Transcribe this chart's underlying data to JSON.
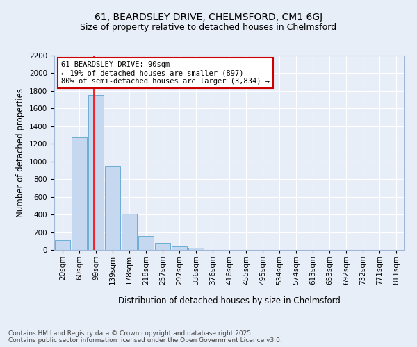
{
  "title_line1": "61, BEARDSLEY DRIVE, CHELMSFORD, CM1 6GJ",
  "title_line2": "Size of property relative to detached houses in Chelmsford",
  "xlabel": "Distribution of detached houses by size in Chelmsford",
  "ylabel": "Number of detached properties",
  "categories": [
    "20sqm",
    "60sqm",
    "99sqm",
    "139sqm",
    "178sqm",
    "218sqm",
    "257sqm",
    "297sqm",
    "336sqm",
    "376sqm",
    "416sqm",
    "455sqm",
    "495sqm",
    "534sqm",
    "574sqm",
    "613sqm",
    "653sqm",
    "692sqm",
    "732sqm",
    "771sqm",
    "811sqm"
  ],
  "values": [
    110,
    1270,
    1750,
    950,
    410,
    155,
    75,
    40,
    20,
    0,
    0,
    0,
    0,
    0,
    0,
    0,
    0,
    0,
    0,
    0,
    0
  ],
  "bar_color": "#c5d8f0",
  "bar_edge_color": "#6aaed6",
  "red_line_x": 1.87,
  "annotation_text": "61 BEARDSLEY DRIVE: 90sqm\n← 19% of detached houses are smaller (897)\n80% of semi-detached houses are larger (3,834) →",
  "annotation_box_color": "#ffffff",
  "annotation_box_edge_color": "#cc0000",
  "ylim": [
    0,
    2200
  ],
  "yticks": [
    0,
    200,
    400,
    600,
    800,
    1000,
    1200,
    1400,
    1600,
    1800,
    2000,
    2200
  ],
  "background_color": "#e8eef8",
  "grid_color": "#ffffff",
  "footer_line1": "Contains HM Land Registry data © Crown copyright and database right 2025.",
  "footer_line2": "Contains public sector information licensed under the Open Government Licence v3.0.",
  "title_fontsize": 10,
  "subtitle_fontsize": 9,
  "axis_label_fontsize": 8.5,
  "tick_fontsize": 7.5,
  "annotation_fontsize": 7.5,
  "footer_fontsize": 6.5
}
